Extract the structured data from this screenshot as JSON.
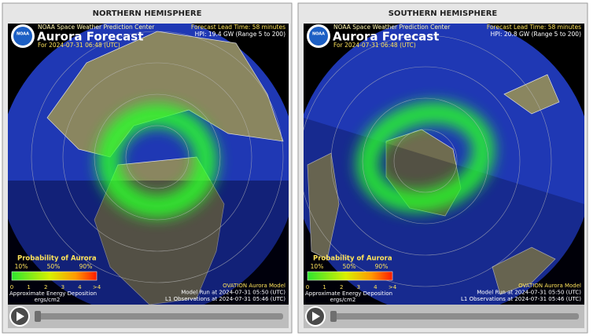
{
  "panels": [
    {
      "title": "NORTHERN HEMISPHERE",
      "logo": "NOAA",
      "center": "NOAA Space Weather Prediction Center",
      "heading": "Aurora Forecast",
      "issued": "For 2024-07-31 06:48 (UTC)",
      "lead_time": "Forecast Lead Time:  58 minutes",
      "hpi": "HPI:  19.4 GW (Range 5 to 200)",
      "legend": {
        "title": "Probability of Aurora",
        "probabilities": [
          "10%",
          "50%",
          "90%"
        ],
        "scale": [
          "0",
          "1",
          "2",
          "3",
          "4",
          ">4"
        ],
        "caption": "Approximate Energy Deposition",
        "units": "ergs/cm2"
      },
      "model": [
        "OVATION Aurora Model",
        "Model Run at 2024-07-31 05:50 (UTC)",
        "L1 Observations at 2024-07-31 05:46 (UTC)"
      ]
    },
    {
      "title": "SOUTHERN HEMISPHERE",
      "logo": "NOAA",
      "center": "NOAA Space Weather Prediction Center",
      "heading": "Aurora Forecast",
      "issued": "For 2024-07-31 06:48 (UTC)",
      "lead_time": "Forecast Lead Time:  58 minutes",
      "hpi": "HPI:  20.8 GW (Range 5 to 200)",
      "legend": {
        "title": "Probability of Aurora",
        "probabilities": [
          "10%",
          "50%",
          "90%"
        ],
        "scale": [
          "0",
          "1",
          "2",
          "3",
          "4",
          ">4"
        ],
        "caption": "Approximate Energy Deposition",
        "units": "ergs/cm2"
      },
      "model": [
        "OVATION Aurora Model",
        "Model Run at 2024-07-31 05:50 (UTC)",
        "L1 Observations at 2024-07-31 05:46 (UTC)"
      ]
    }
  ]
}
